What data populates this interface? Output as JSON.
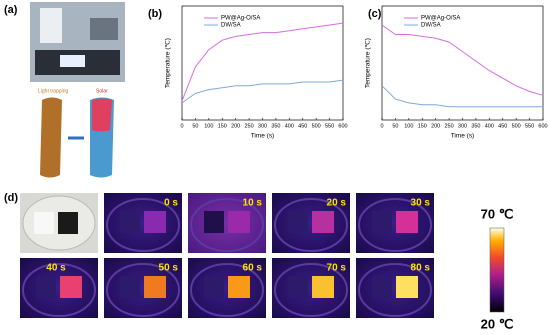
{
  "panel_labels": {
    "a": "(a)",
    "b": "(b)",
    "c": "(c)",
    "d": "(d)"
  },
  "illustration": {
    "left_label": "Light trapping",
    "right_label": "Solar"
  },
  "thermal_labels": [
    "0 s",
    "10 s",
    "20 s",
    "30 s",
    "40 s",
    "50 s",
    "60 s",
    "70 s",
    "80 s"
  ],
  "colorbar": {
    "max_label": "70 ℃",
    "min_label": "20 ℃"
  },
  "chart_data": [
    {
      "type": "line",
      "xlabel": "Time (s)",
      "ylabel": "Temperature (℃)",
      "x": [
        0,
        50,
        100,
        150,
        200,
        250,
        300,
        350,
        400,
        450,
        500,
        550,
        600
      ],
      "xlim": [
        0,
        600
      ],
      "xticks": [
        0,
        50,
        100,
        150,
        200,
        250,
        300,
        350,
        400,
        450,
        500,
        550,
        600
      ],
      "ylim": [
        20,
        80
      ],
      "legend": "upper left",
      "series": [
        {
          "name": "PW@Ag-O/SA",
          "color": "#d66de0",
          "values": [
            30,
            48,
            57,
            62,
            64,
            65,
            66,
            66,
            67,
            68,
            69,
            70,
            71
          ]
        },
        {
          "name": "DW/SA",
          "color": "#7fa8dc",
          "values": [
            29,
            34,
            36,
            37,
            38,
            38,
            39,
            39,
            39,
            40,
            40,
            40,
            41
          ]
        }
      ]
    },
    {
      "type": "line",
      "xlabel": "Time (s)",
      "ylabel": "Temperature (℃)",
      "x": [
        0,
        50,
        100,
        150,
        200,
        250,
        300,
        350,
        400,
        450,
        500,
        550,
        600
      ],
      "xlim": [
        0,
        600
      ],
      "xticks": [
        0,
        50,
        100,
        150,
        200,
        250,
        300,
        350,
        400,
        450,
        500,
        550,
        600
      ],
      "ylim": [
        20,
        80
      ],
      "legend": "upper left",
      "series": [
        {
          "name": "PW@Ag-O/SA",
          "color": "#d66de0",
          "values": [
            70,
            65,
            65,
            64,
            63,
            61,
            56,
            51,
            46,
            42,
            38,
            35,
            33
          ]
        },
        {
          "name": "DW/SA",
          "color": "#7fa8dc",
          "values": [
            38,
            31,
            29,
            28,
            28,
            27,
            27,
            27,
            27,
            27,
            27,
            27,
            27
          ]
        }
      ]
    }
  ]
}
